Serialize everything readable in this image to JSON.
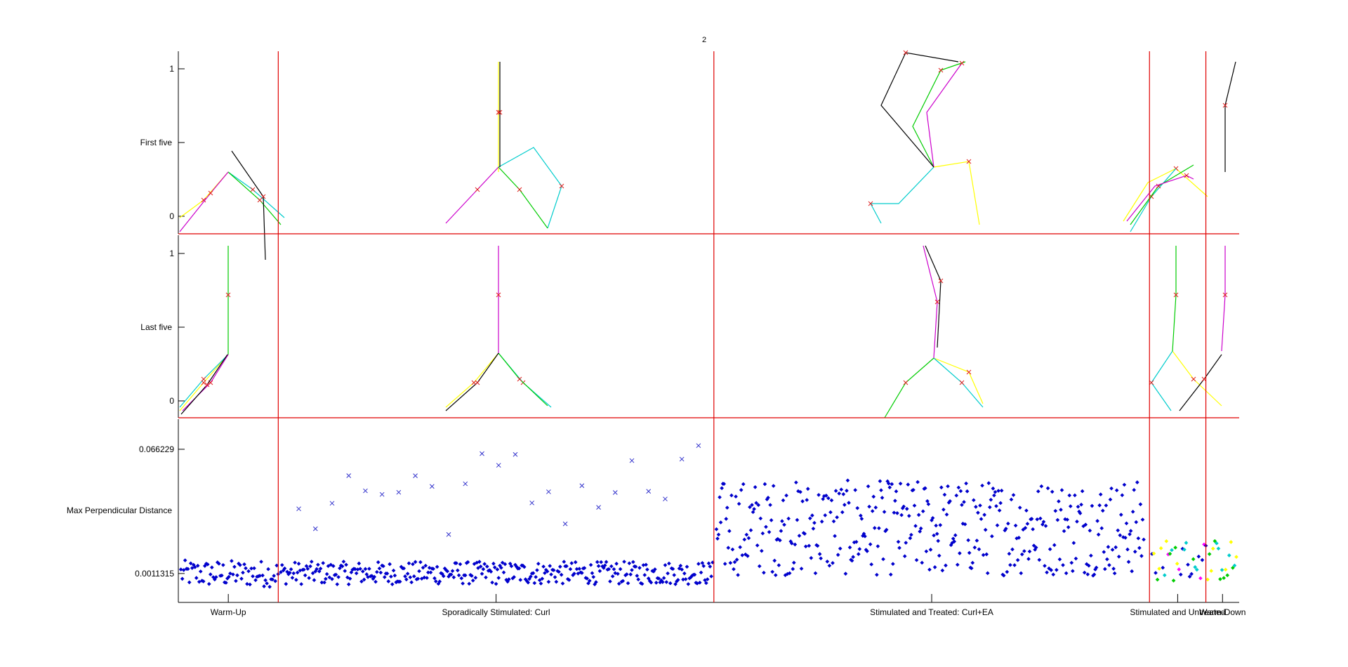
{
  "figure": {
    "number_label": "2"
  },
  "colors": {
    "axis": "#000000",
    "divider": "#e00000",
    "marker": "#e02020",
    "points": "#0000cc",
    "traces": [
      "#ffff00",
      "#00cccc",
      "#00cc00",
      "#cc00cc",
      "#000000"
    ]
  },
  "chart_data": [
    {
      "type": "line",
      "panel": "first-five",
      "ylabel": "First five",
      "ylim": [
        -0.1,
        1.15
      ],
      "yticks": [
        {
          "value": 0,
          "label": "0"
        },
        {
          "value": 1,
          "label": "1"
        }
      ],
      "grid": false,
      "note": "trajectory traces (yellow, cyan, green, magenta, black) with x markers, shown in four phase blocks"
    },
    {
      "type": "line",
      "panel": "last-five",
      "ylabel": "Last five",
      "ylim": [
        -0.1,
        1.15
      ],
      "yticks": [
        {
          "value": 0,
          "label": "0"
        },
        {
          "value": 1,
          "label": "1"
        }
      ],
      "grid": false
    },
    {
      "type": "scatter",
      "panel": "max-perpendicular-distance",
      "ylabel": "Max Perpendicular Distance",
      "yticks": [
        {
          "value": 0.0011315,
          "label": "0.0011315"
        },
        {
          "value": 0.066229,
          "label": "0.066229"
        }
      ],
      "ylim": [
        -0.014,
        0.082
      ],
      "phases": [
        {
          "label": "Warm-Up",
          "trials": [
            1,
            40
          ]
        },
        {
          "label": "Sporadically Stimulated: Curl",
          "trials": [
            40,
            210
          ]
        },
        {
          "label": "Stimulated and Treated: Curl+EA",
          "trials": [
            210,
            380
          ]
        },
        {
          "label": "Stimulated and Untreated",
          "trials": [
            380,
            402
          ]
        },
        {
          "label": "Warm-Down",
          "trials": [
            402,
            415
          ]
        }
      ],
      "series": [
        {
          "marker": "dot",
          "color": "#0000cc"
        },
        {
          "marker": "x",
          "color": "#3333cc"
        }
      ],
      "grid": false
    }
  ]
}
